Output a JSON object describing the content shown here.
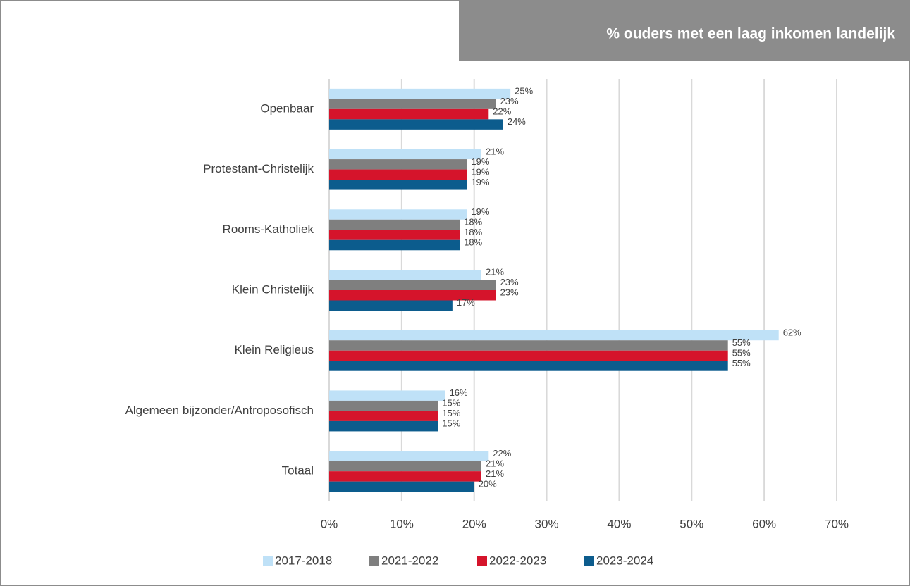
{
  "chart_data": {
    "type": "bar",
    "orientation": "horizontal",
    "title": "% ouders met een laag inkomen landelijk",
    "categories": [
      "Openbaar",
      "Protestant-Christelijk",
      "Rooms-Katholiek",
      "Klein Christelijk",
      "Klein Religieus",
      "Algemeen bijzonder/Antroposofisch",
      "Totaal"
    ],
    "series": [
      {
        "name": "2017-2018",
        "color": "#bfe1f7",
        "values": [
          25,
          21,
          19,
          21,
          62,
          16,
          22
        ],
        "value_labels": [
          "25%",
          "21%",
          "19%",
          "21%",
          "62%",
          "16%",
          "22%"
        ]
      },
      {
        "name": "2021-2022",
        "color": "#7f7f7f",
        "values": [
          23,
          19,
          18,
          23,
          55,
          15,
          21
        ],
        "value_labels": [
          "23%",
          "19%",
          "18%",
          "23%",
          "55%",
          "15%",
          "21%"
        ]
      },
      {
        "name": "2022-2023",
        "color": "#d5142b",
        "values": [
          22,
          19,
          18,
          23,
          55,
          15,
          21
        ],
        "value_labels": [
          "22%",
          "19%",
          "18%",
          "23%",
          "55%",
          "15%",
          "21%"
        ]
      },
      {
        "name": "2023-2024",
        "color": "#0c5c8d",
        "values": [
          24,
          19,
          18,
          17,
          55,
          15,
          20
        ],
        "value_labels": [
          "24%",
          "19%",
          "18%",
          "17%",
          "55%",
          "15%",
          "20%"
        ]
      }
    ],
    "xlim": [
      0,
      70
    ],
    "xticks": [
      {
        "value": 0,
        "label": "0%"
      },
      {
        "value": 10,
        "label": "10%"
      },
      {
        "value": 20,
        "label": "20%"
      },
      {
        "value": 30,
        "label": "30%"
      },
      {
        "value": 40,
        "label": "40%"
      },
      {
        "value": 50,
        "label": "50%"
      },
      {
        "value": 60,
        "label": "60%"
      },
      {
        "value": 70,
        "label": "70%"
      }
    ],
    "grid": true,
    "legend": "bottom"
  }
}
